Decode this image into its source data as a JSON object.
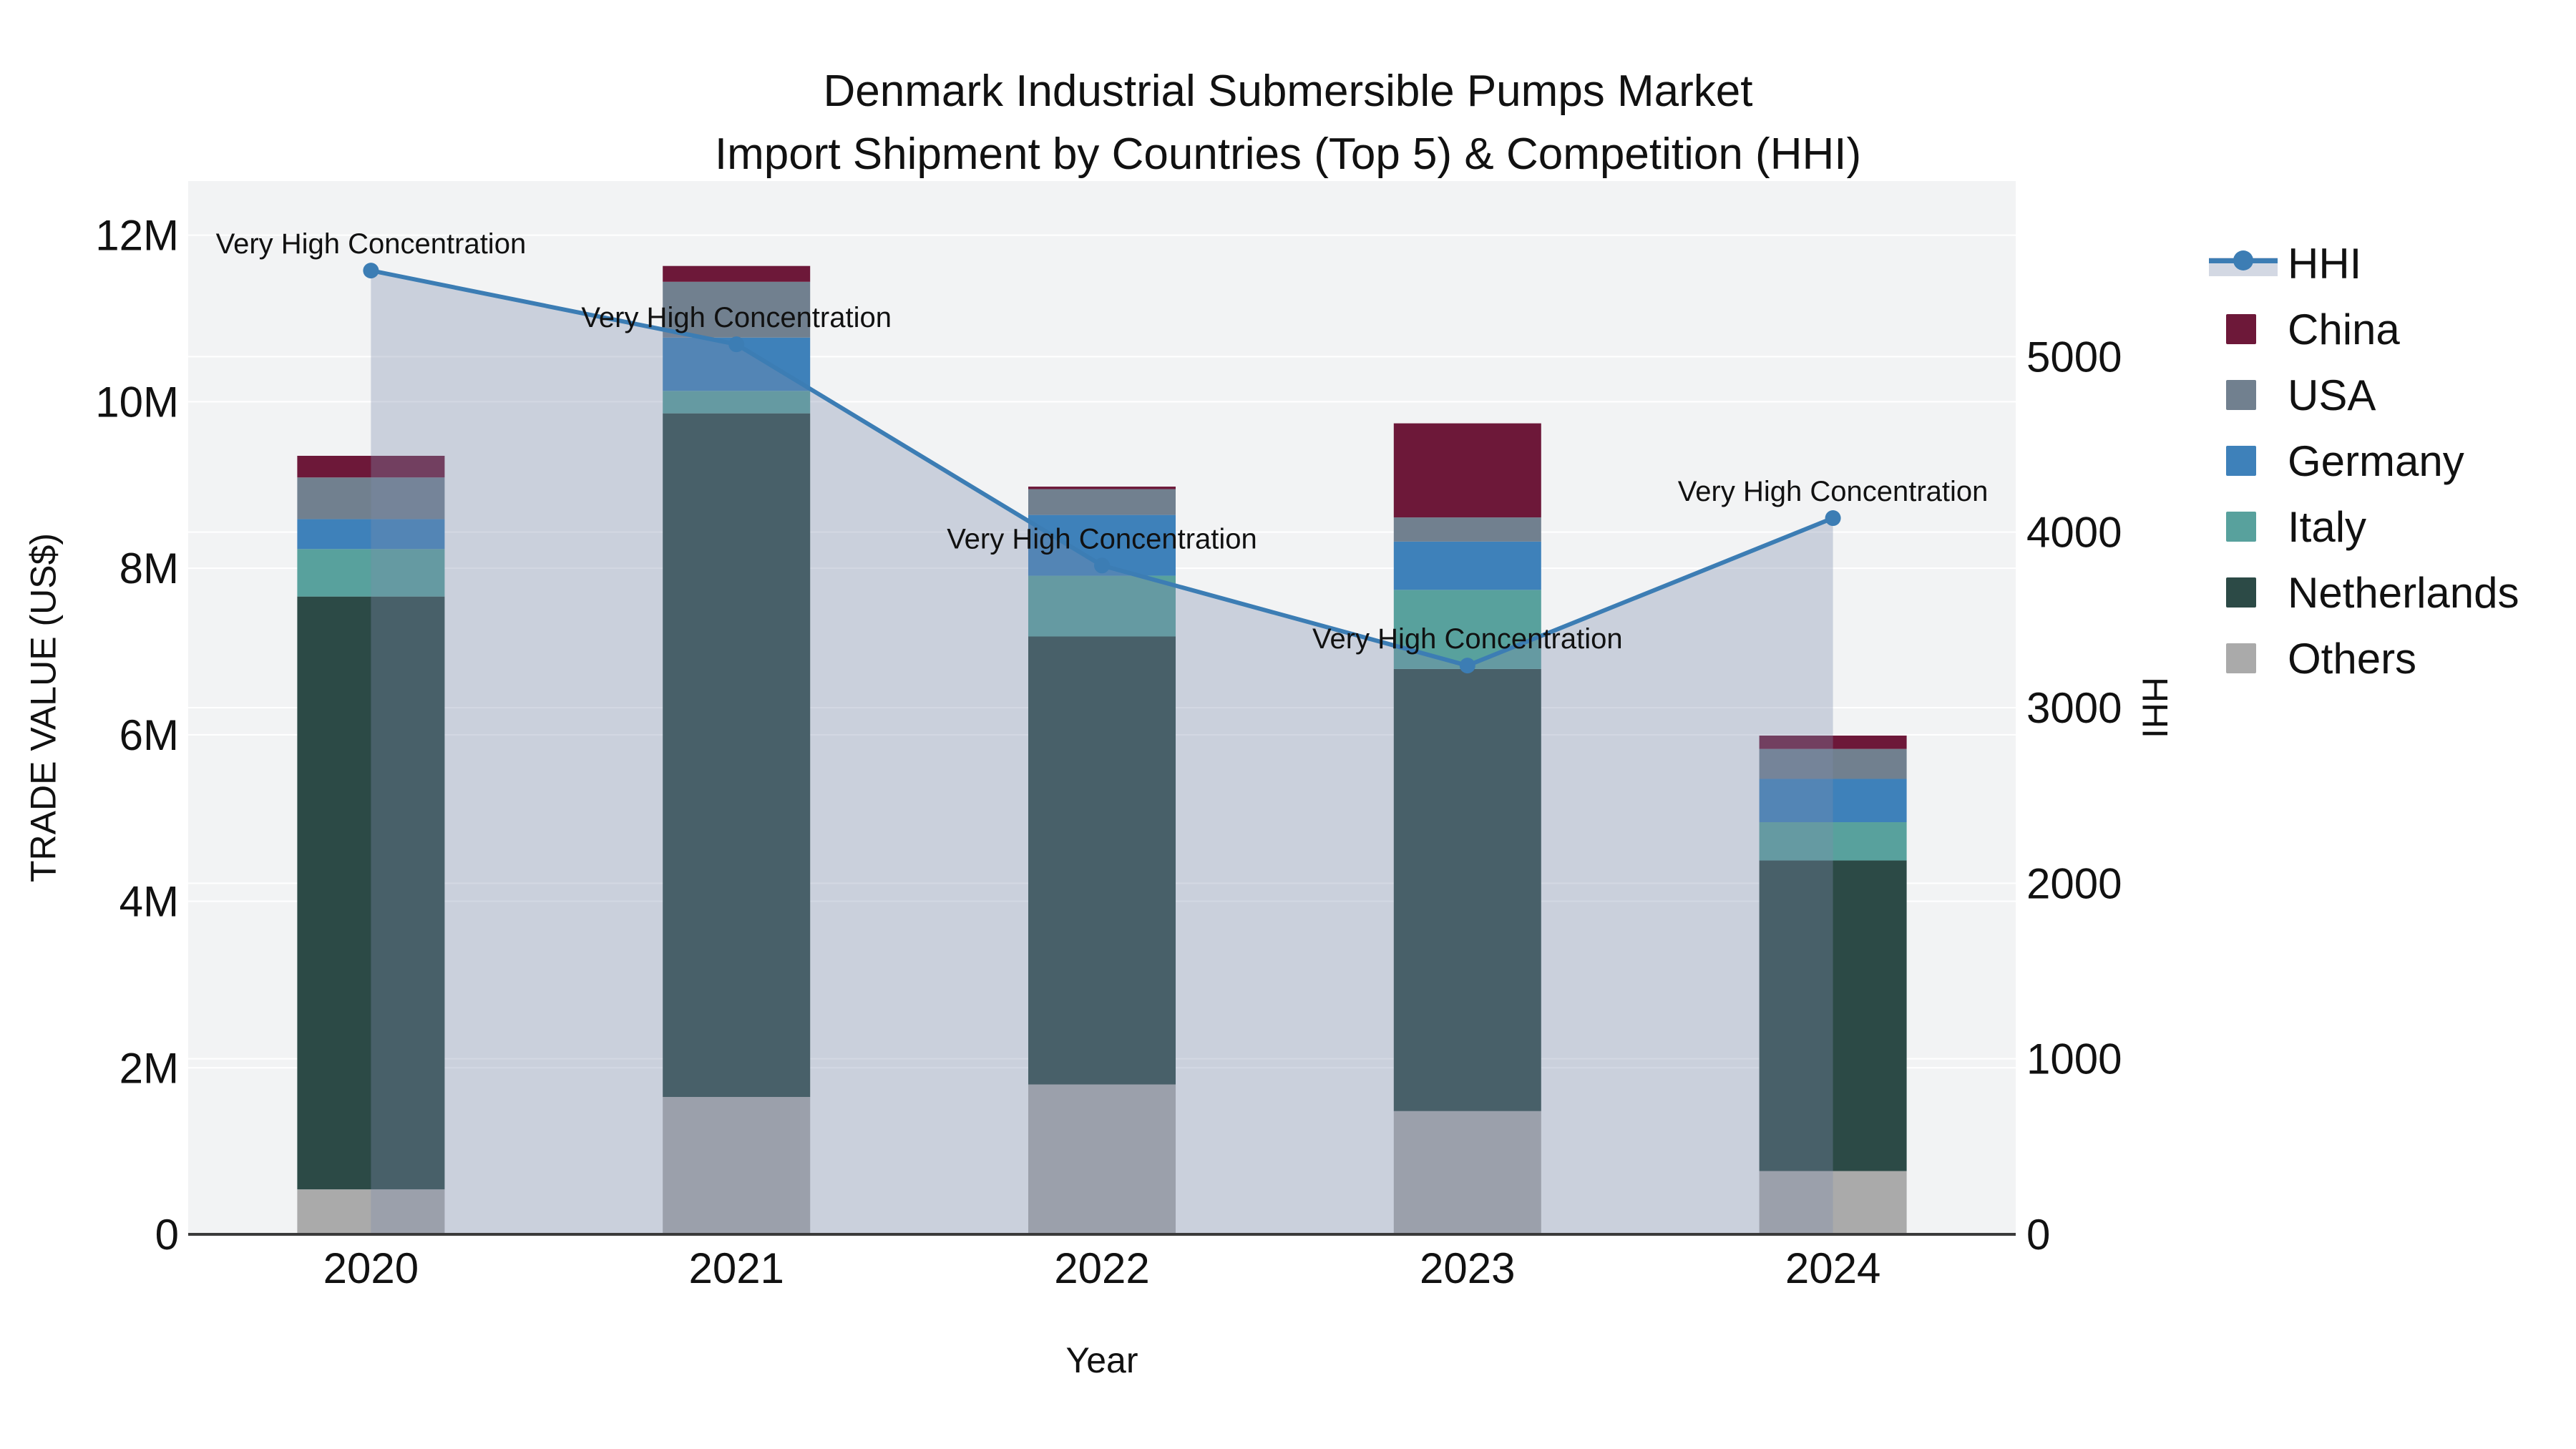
{
  "title": {
    "line1": "Denmark Industrial Submersible Pumps Market",
    "line2": "Import Shipment by Countries (Top 5) & Competition (HHI)"
  },
  "chart_data": {
    "type": "bar+line",
    "title": "Denmark Industrial Submersible Pumps Market — Import Shipment by Countries (Top 5) & Competition (HHI)",
    "categories": [
      "2020",
      "2021",
      "2022",
      "2023",
      "2024"
    ],
    "bar_unit": "Trade value, millions US$",
    "stack_order": [
      "Others",
      "Netherlands",
      "Italy",
      "Germany",
      "USA",
      "China"
    ],
    "series": [
      {
        "name": "China",
        "color": "#6D1839",
        "values": [
          0.26,
          0.19,
          0.03,
          1.13,
          0.16
        ]
      },
      {
        "name": "USA",
        "color": "#71808F",
        "values": [
          0.5,
          0.67,
          0.31,
          0.29,
          0.36
        ]
      },
      {
        "name": "Germany",
        "color": "#3E81BA",
        "values": [
          0.36,
          0.64,
          0.73,
          0.58,
          0.52
        ]
      },
      {
        "name": "Italy",
        "color": "#58A19D",
        "values": [
          0.57,
          0.27,
          0.73,
          0.95,
          0.46
        ]
      },
      {
        "name": "Netherlands",
        "color": "#2C4A46",
        "values": [
          7.12,
          8.21,
          5.38,
          5.31,
          3.73
        ]
      },
      {
        "name": "Others",
        "color": "#AAAAAA",
        "values": [
          0.54,
          1.65,
          1.8,
          1.48,
          0.76
        ]
      }
    ],
    "line_series": {
      "name": "HHI",
      "color": "#3C7DB4",
      "area_fill": "rgba(127,142,173,0.34)",
      "values": [
        5490,
        5070,
        3810,
        3240,
        4080
      ]
    },
    "annotations": [
      "Very High Concentration",
      "Very High Concentration",
      "Very High Concentration",
      "Very High Concentration",
      "Very High Concentration"
    ],
    "xlabel": "Year",
    "ylabel": "TRADE VALUE (US$)",
    "y2label": "HHI",
    "yaxis": {
      "tickvals": [
        0,
        2,
        4,
        6,
        8,
        10,
        12
      ],
      "ticktext": [
        "0",
        "2M",
        "4M",
        "6M",
        "8M",
        "10M",
        "12M"
      ],
      "max": 12.65
    },
    "y2axis": {
      "tickvals": [
        0,
        1000,
        2000,
        3000,
        4000,
        5000
      ],
      "ticktext": [
        "0",
        "1000",
        "2000",
        "3000",
        "4000",
        "5000"
      ],
      "max": 6000
    },
    "grid": true,
    "legend_position": "right",
    "plot_bg": "#F2F3F4",
    "grid_color": "#FFFFFF",
    "axisline_color": "#3A3A3A",
    "text_color": "#111111"
  },
  "legend": {
    "items": [
      {
        "label": "HHI",
        "type": "line",
        "color": "#3C7DB4",
        "band": "#D3D8E3"
      },
      {
        "label": "China",
        "type": "swatch",
        "color": "#6D1839"
      },
      {
        "label": "USA",
        "type": "swatch",
        "color": "#71808F"
      },
      {
        "label": "Germany",
        "type": "swatch",
        "color": "#3E81BA"
      },
      {
        "label": "Italy",
        "type": "swatch",
        "color": "#58A19D"
      },
      {
        "label": "Netherlands",
        "type": "swatch",
        "color": "#2C4A46"
      },
      {
        "label": "Others",
        "type": "swatch",
        "color": "#AAAAAA"
      }
    ]
  }
}
